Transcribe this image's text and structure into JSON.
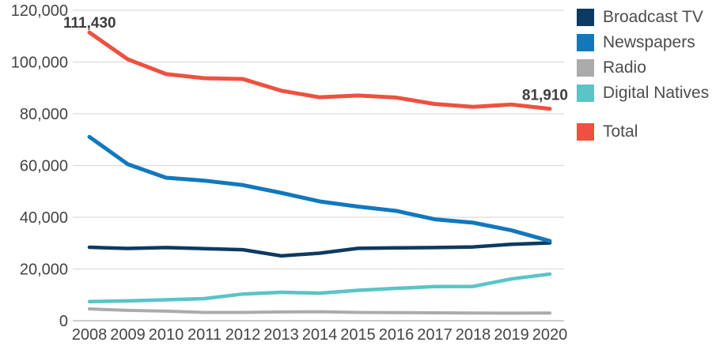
{
  "chart_data": {
    "type": "line",
    "title": "",
    "xlabel": "",
    "ylabel": "",
    "categories": [
      "2008",
      "2009",
      "2010",
      "2011",
      "2012",
      "2013",
      "2014",
      "2015",
      "2016",
      "2017",
      "2018",
      "2019",
      "2020"
    ],
    "series": [
      {
        "name": "Broadcast TV",
        "color": "#0d3a63",
        "width": 4.5,
        "values": [
          28390,
          27950,
          28300,
          27850,
          27450,
          25080,
          26100,
          27990,
          28160,
          28290,
          28530,
          29540,
          30080
        ]
      },
      {
        "name": "Newspapers",
        "color": "#1178bd",
        "width": 5,
        "values": [
          71070,
          60500,
          55260,
          54140,
          52430,
          49430,
          46110,
          44120,
          42450,
          39210,
          37900,
          34950,
          30820
        ]
      },
      {
        "name": "Radio",
        "color": "#ababab",
        "width": 4,
        "values": [
          4570,
          4000,
          3690,
          3190,
          3220,
          3400,
          3490,
          3200,
          3130,
          3070,
          2990,
          2920,
          2980
        ]
      },
      {
        "name": "Digital Natives",
        "color": "#5ac4c6",
        "width": 4.5,
        "values": [
          7400,
          7690,
          8090,
          8560,
          10320,
          11010,
          10660,
          11750,
          12510,
          13210,
          13260,
          16160,
          18030
        ]
      },
      {
        "name": "Total",
        "color": "#ee5140",
        "width": 5,
        "values": [
          111430,
          101040,
          95340,
          93740,
          93420,
          88920,
          86360,
          87060,
          86250,
          83780,
          82680,
          83570,
          81910
        ]
      }
    ],
    "annotations": [
      {
        "series": "Total",
        "category": "2008",
        "label": "111,430"
      },
      {
        "series": "Total",
        "category": "2020",
        "label": "81,910"
      }
    ],
    "ylim": [
      0,
      120000
    ],
    "ytick_step": 20000,
    "ytick_labels": [
      "0",
      "20,000",
      "40,000",
      "60,000",
      "80,000",
      "100,000",
      "120,000"
    ],
    "grid": "horizontal",
    "legend_position": "right",
    "legend_order": [
      "Broadcast TV",
      "Newspapers",
      "Radio",
      "Digital Natives",
      "Total"
    ],
    "legend_separated_item": "Total",
    "colors": {
      "gridline": "#dcdcdc",
      "baseline": "#bdbdbd",
      "axis_text": "#454545",
      "data_label_text": "#3d3d3d",
      "legend_text": "#4c4c4c",
      "background": "#ffffff"
    }
  }
}
